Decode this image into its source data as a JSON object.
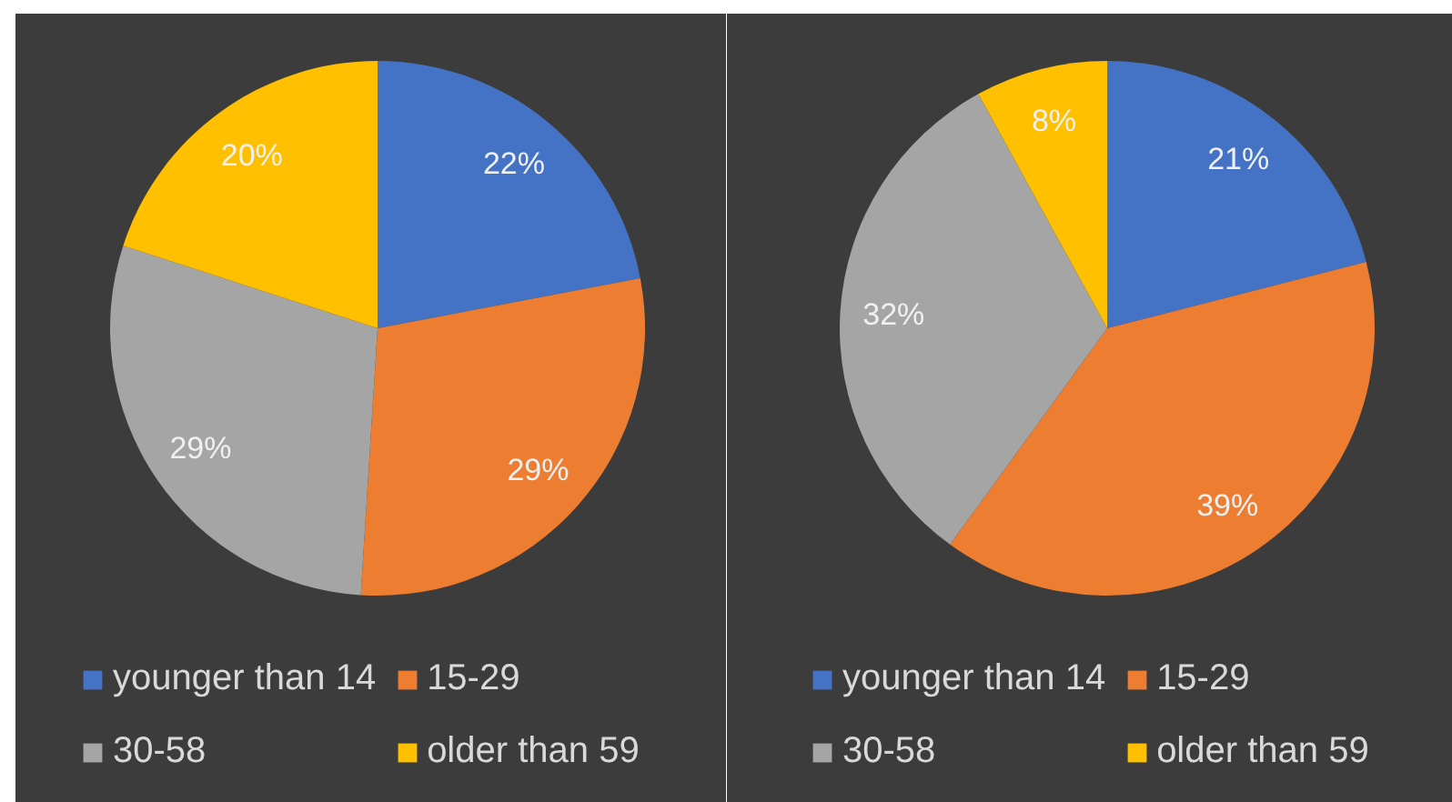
{
  "chart_data": [
    {
      "type": "pie",
      "categories": [
        "younger than 14",
        "15-29",
        "30-58",
        "older than 59"
      ],
      "values": [
        22,
        29,
        29,
        20
      ],
      "colors": [
        "#4472c4",
        "#ed7d31",
        "#a5a5a5",
        "#ffc000"
      ],
      "value_labels": [
        "22%",
        "29%",
        "29%",
        "20%"
      ],
      "legend": "bottom"
    },
    {
      "type": "pie",
      "categories": [
        "younger than 14",
        "15-29",
        "30-58",
        "older than 59"
      ],
      "values": [
        21,
        39,
        32,
        8
      ],
      "colors": [
        "#4472c4",
        "#ed7d31",
        "#a5a5a5",
        "#ffc000"
      ],
      "value_labels": [
        "21%",
        "39%",
        "32%",
        "8%"
      ],
      "legend": "bottom"
    }
  ]
}
